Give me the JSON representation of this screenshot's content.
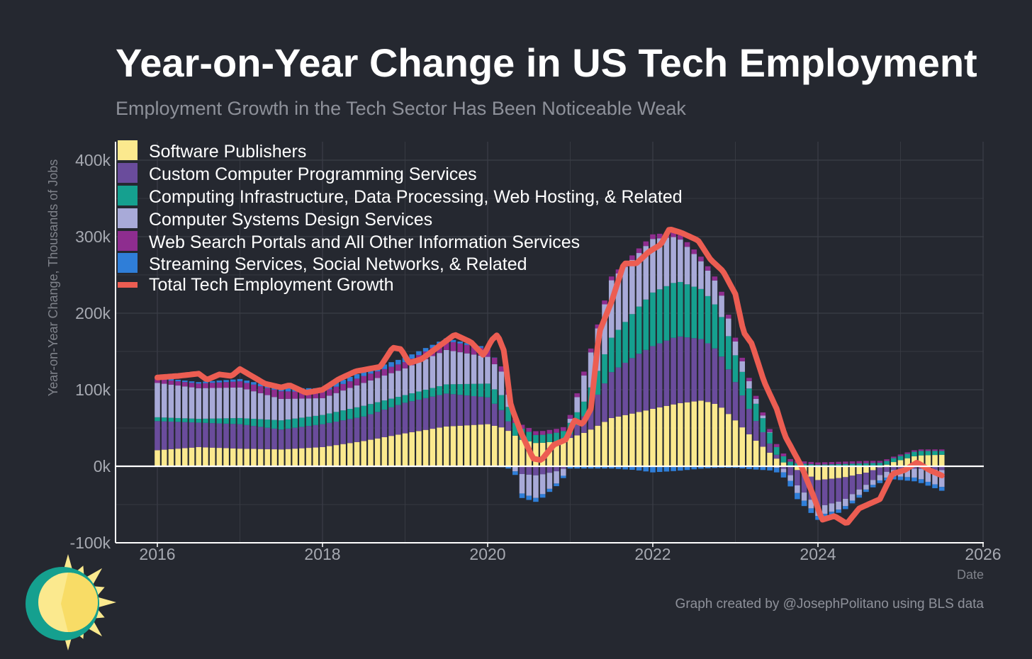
{
  "title": "Year-on-Year Change in US Tech Employment",
  "subtitle": "Employment Growth in the Tech Sector Has Been Noticeable Weak",
  "credit": "Graph created by @JosephPolitano using BLS data",
  "colors": {
    "background": "#252830",
    "grid": "#3b3e47",
    "zero_line": "#ffffff",
    "software": "#fbe98e",
    "custom": "#6a4c9c",
    "infra": "#15a08f",
    "design": "#a8aad8",
    "websearch": "#8e2d8f",
    "streaming": "#2f7ed8",
    "total": "#ec5d52"
  },
  "chart_data": {
    "type": "bar",
    "stacked": true,
    "xlabel": "Date",
    "ylabel": "Year-on-Year Change, Thousands of Jobs",
    "xlim": [
      2015.55,
      2026
    ],
    "ylim": [
      -100,
      420
    ],
    "xticks": [
      2016,
      2018,
      2020,
      2022,
      2024,
      2026
    ],
    "yticks": [
      -100,
      0,
      100,
      200,
      300,
      400
    ],
    "ytick_labels": [
      "-100k",
      "0k",
      "100k",
      "200k",
      "300k",
      "400k"
    ],
    "xtick_labels": [
      "2016",
      "2018",
      "2020",
      "2022",
      "2024",
      "2026"
    ],
    "grid": true,
    "legend": "top-left",
    "start": "2016-01",
    "frequency": "monthly",
    "series": [
      {
        "name": "Software Publishers",
        "key": "software",
        "kind": "bar",
        "anchors": [
          [
            2016,
            21
          ],
          [
            2016.5,
            25
          ],
          [
            2017,
            23
          ],
          [
            2017.5,
            22
          ],
          [
            2018,
            25
          ],
          [
            2018.5,
            33
          ],
          [
            2019,
            43
          ],
          [
            2019.5,
            52
          ],
          [
            2020,
            55
          ],
          [
            2020.2,
            50
          ],
          [
            2020.4,
            35
          ],
          [
            2020.6,
            30
          ],
          [
            2020.9,
            33
          ],
          [
            2021.2,
            45
          ],
          [
            2021.5,
            63
          ],
          [
            2021.8,
            70
          ],
          [
            2022.0,
            75
          ],
          [
            2022.3,
            82
          ],
          [
            2022.6,
            86
          ],
          [
            2022.8,
            80
          ],
          [
            2023.0,
            60
          ],
          [
            2023.2,
            38
          ],
          [
            2023.5,
            10
          ],
          [
            2023.75,
            -5
          ],
          [
            2024.0,
            -18
          ],
          [
            2024.3,
            -15
          ],
          [
            2024.6,
            -8
          ],
          [
            2024.9,
            5
          ],
          [
            2025.2,
            14
          ],
          [
            2025.5,
            15
          ]
        ]
      },
      {
        "name": "Custom Computer Programming Services",
        "key": "custom",
        "kind": "bar",
        "anchors": [
          [
            2016,
            38
          ],
          [
            2016.5,
            32
          ],
          [
            2017,
            32
          ],
          [
            2017.5,
            26
          ],
          [
            2018,
            30
          ],
          [
            2018.5,
            32
          ],
          [
            2019,
            40
          ],
          [
            2019.5,
            43
          ],
          [
            2020,
            35
          ],
          [
            2020.2,
            20
          ],
          [
            2020.4,
            -10
          ],
          [
            2020.6,
            -12
          ],
          [
            2020.9,
            -5
          ],
          [
            2021.2,
            25
          ],
          [
            2021.5,
            60
          ],
          [
            2021.8,
            75
          ],
          [
            2022.0,
            82
          ],
          [
            2022.3,
            88
          ],
          [
            2022.6,
            80
          ],
          [
            2022.8,
            70
          ],
          [
            2023.0,
            50
          ],
          [
            2023.2,
            30
          ],
          [
            2023.5,
            5
          ],
          [
            2023.75,
            -20
          ],
          [
            2024.0,
            -35
          ],
          [
            2024.3,
            -30
          ],
          [
            2024.6,
            -15
          ],
          [
            2024.9,
            -5
          ],
          [
            2025.2,
            -3
          ],
          [
            2025.5,
            -5
          ]
        ]
      },
      {
        "name": "Computing Infrastructure, Data Processing, Web Hosting, & Related",
        "key": "infra",
        "kind": "bar",
        "anchors": [
          [
            2016,
            5
          ],
          [
            2016.5,
            5
          ],
          [
            2017,
            8
          ],
          [
            2017.5,
            12
          ],
          [
            2018,
            12
          ],
          [
            2018.5,
            14
          ],
          [
            2019,
            10
          ],
          [
            2019.5,
            12
          ],
          [
            2020,
            18
          ],
          [
            2020.2,
            20
          ],
          [
            2020.4,
            15
          ],
          [
            2020.6,
            10
          ],
          [
            2020.9,
            12
          ],
          [
            2021.2,
            20
          ],
          [
            2021.5,
            45
          ],
          [
            2021.8,
            60
          ],
          [
            2022.0,
            70
          ],
          [
            2022.3,
            72
          ],
          [
            2022.6,
            65
          ],
          [
            2022.8,
            55
          ],
          [
            2023.0,
            35
          ],
          [
            2023.2,
            25
          ],
          [
            2023.5,
            10
          ],
          [
            2023.75,
            4
          ],
          [
            2024.0,
            2
          ],
          [
            2024.3,
            3
          ],
          [
            2024.6,
            4
          ],
          [
            2024.9,
            5
          ],
          [
            2025.2,
            6
          ],
          [
            2025.5,
            5
          ]
        ]
      },
      {
        "name": "Computer Systems Design Services",
        "key": "design",
        "kind": "bar",
        "anchors": [
          [
            2016,
            45
          ],
          [
            2016.5,
            40
          ],
          [
            2017,
            40
          ],
          [
            2017.5,
            28
          ],
          [
            2018,
            22
          ],
          [
            2018.5,
            30
          ],
          [
            2019,
            35
          ],
          [
            2019.5,
            45
          ],
          [
            2020,
            35
          ],
          [
            2020.2,
            30
          ],
          [
            2020.4,
            -25
          ],
          [
            2020.6,
            -30
          ],
          [
            2020.9,
            -12
          ],
          [
            2021.2,
            40
          ],
          [
            2021.5,
            75
          ],
          [
            2021.8,
            70
          ],
          [
            2022.0,
            70
          ],
          [
            2022.3,
            58
          ],
          [
            2022.6,
            35
          ],
          [
            2022.8,
            30
          ],
          [
            2023.0,
            18
          ],
          [
            2023.2,
            8
          ],
          [
            2023.5,
            -2
          ],
          [
            2023.75,
            -10
          ],
          [
            2024.0,
            -12
          ],
          [
            2024.3,
            -10
          ],
          [
            2024.6,
            -6
          ],
          [
            2024.9,
            -8
          ],
          [
            2025.2,
            -12
          ],
          [
            2025.5,
            -22
          ]
        ]
      },
      {
        "name": "Web Search Portals and All Other Information Services",
        "key": "websearch",
        "kind": "bar",
        "anchors": [
          [
            2016,
            5
          ],
          [
            2016.5,
            6
          ],
          [
            2017,
            8
          ],
          [
            2017.5,
            10
          ],
          [
            2018,
            8
          ],
          [
            2018.5,
            9
          ],
          [
            2019,
            8
          ],
          [
            2019.5,
            12
          ],
          [
            2020,
            10
          ],
          [
            2020.2,
            6
          ],
          [
            2020.4,
            5
          ],
          [
            2020.6,
            5
          ],
          [
            2020.9,
            5
          ],
          [
            2021.2,
            5
          ],
          [
            2021.5,
            5
          ],
          [
            2021.8,
            6
          ],
          [
            2022.0,
            6
          ],
          [
            2022.3,
            6
          ],
          [
            2022.6,
            6
          ],
          [
            2022.8,
            5
          ],
          [
            2023.0,
            5
          ],
          [
            2023.2,
            4
          ],
          [
            2023.5,
            4
          ],
          [
            2023.75,
            3
          ],
          [
            2024.0,
            3
          ],
          [
            2024.3,
            3
          ],
          [
            2024.6,
            3
          ],
          [
            2024.9,
            2
          ],
          [
            2025.2,
            2
          ],
          [
            2025.5,
            2
          ]
        ]
      },
      {
        "name": "Streaming Services, Social Networks, & Related",
        "key": "streaming",
        "kind": "bar",
        "anchors": [
          [
            2016,
            2
          ],
          [
            2016.5,
            2
          ],
          [
            2017,
            3
          ],
          [
            2017.5,
            4
          ],
          [
            2018,
            5
          ],
          [
            2018.5,
            6
          ],
          [
            2019,
            6
          ],
          [
            2019.5,
            3
          ],
          [
            2020,
            2
          ],
          [
            2020.2,
            -2
          ],
          [
            2020.4,
            -6
          ],
          [
            2020.6,
            -5
          ],
          [
            2020.9,
            -3
          ],
          [
            2021.2,
            -3
          ],
          [
            2021.5,
            -3
          ],
          [
            2021.8,
            -5
          ],
          [
            2022.0,
            -8
          ],
          [
            2022.3,
            -6
          ],
          [
            2022.6,
            -3
          ],
          [
            2022.8,
            -2
          ],
          [
            2023.0,
            -2
          ],
          [
            2023.2,
            -4
          ],
          [
            2023.5,
            -6
          ],
          [
            2023.75,
            -8
          ],
          [
            2024.0,
            -5
          ],
          [
            2024.3,
            -4
          ],
          [
            2024.6,
            -3
          ],
          [
            2024.9,
            -4
          ],
          [
            2025.2,
            -5
          ],
          [
            2025.5,
            -5
          ]
        ]
      },
      {
        "name": "Total Tech Employment Growth",
        "key": "total",
        "kind": "line",
        "anchors": [
          [
            2016,
            116
          ],
          [
            2016.25,
            118
          ],
          [
            2016.5,
            121
          ],
          [
            2016.6,
            113
          ],
          [
            2016.75,
            120
          ],
          [
            2016.9,
            118
          ],
          [
            2017.0,
            127
          ],
          [
            2017.3,
            108
          ],
          [
            2017.5,
            103
          ],
          [
            2017.6,
            106
          ],
          [
            2017.8,
            96
          ],
          [
            2018.0,
            100
          ],
          [
            2018.2,
            114
          ],
          [
            2018.4,
            124
          ],
          [
            2018.7,
            130
          ],
          [
            2018.85,
            155
          ],
          [
            2018.95,
            153
          ],
          [
            2019.05,
            135
          ],
          [
            2019.2,
            140
          ],
          [
            2019.35,
            152
          ],
          [
            2019.6,
            172
          ],
          [
            2019.8,
            162
          ],
          [
            2019.95,
            145
          ],
          [
            2020.05,
            165
          ],
          [
            2020.12,
            172
          ],
          [
            2020.2,
            150
          ],
          [
            2020.28,
            80
          ],
          [
            2020.4,
            45
          ],
          [
            2020.55,
            10
          ],
          [
            2020.65,
            8
          ],
          [
            2020.8,
            28
          ],
          [
            2020.95,
            35
          ],
          [
            2021.05,
            60
          ],
          [
            2021.15,
            55
          ],
          [
            2021.25,
            75
          ],
          [
            2021.35,
            175
          ],
          [
            2021.5,
            215
          ],
          [
            2021.65,
            265
          ],
          [
            2021.8,
            265
          ],
          [
            2021.95,
            280
          ],
          [
            2022.1,
            290
          ],
          [
            2022.2,
            310
          ],
          [
            2022.35,
            305
          ],
          [
            2022.55,
            295
          ],
          [
            2022.7,
            270
          ],
          [
            2022.85,
            255
          ],
          [
            2023.0,
            225
          ],
          [
            2023.1,
            175
          ],
          [
            2023.2,
            160
          ],
          [
            2023.35,
            110
          ],
          [
            2023.5,
            75
          ],
          [
            2023.6,
            40
          ],
          [
            2023.7,
            20
          ],
          [
            2023.8,
            0
          ],
          [
            2023.95,
            -40
          ],
          [
            2024.05,
            -70
          ],
          [
            2024.2,
            -65
          ],
          [
            2024.35,
            -75
          ],
          [
            2024.5,
            -55
          ],
          [
            2024.75,
            -43
          ],
          [
            2024.9,
            -10
          ],
          [
            2025.05,
            -5
          ],
          [
            2025.2,
            5
          ],
          [
            2025.35,
            -5
          ],
          [
            2025.5,
            -12
          ]
        ]
      }
    ]
  }
}
